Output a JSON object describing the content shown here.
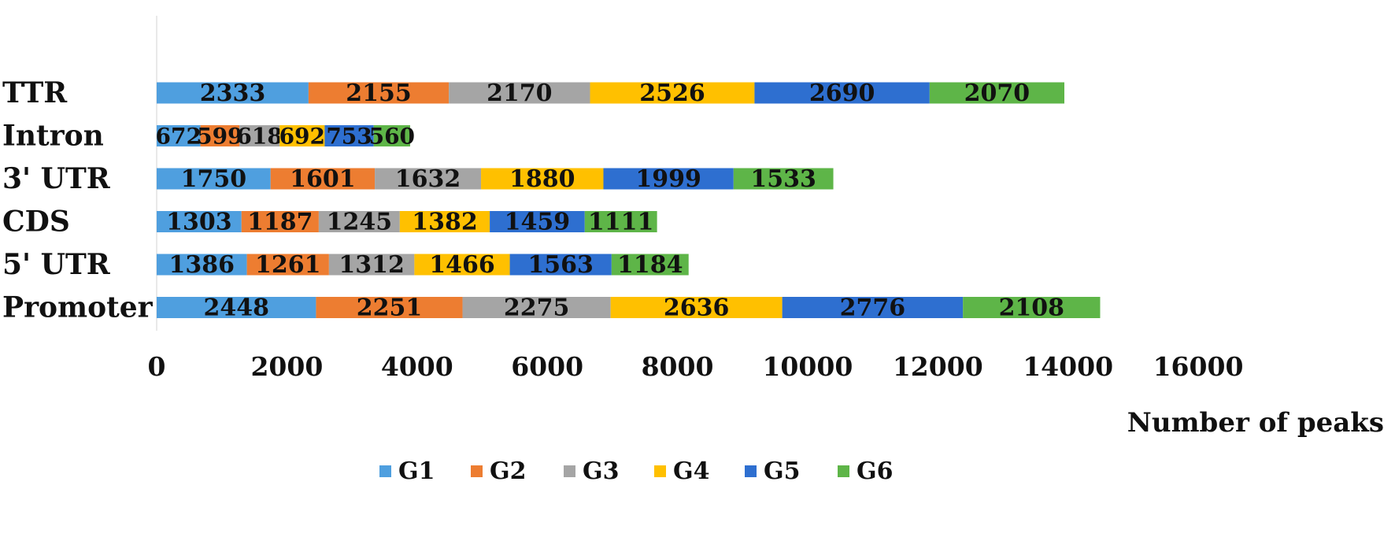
{
  "chart_data": {
    "type": "bar",
    "orientation": "horizontal",
    "stacked": true,
    "categories": [
      "Promoter",
      "5' UTR",
      "CDS",
      "3' UTR",
      "Intron",
      "TTR"
    ],
    "series": [
      {
        "name": "G1",
        "color": "#4f9fdf",
        "values": [
          2448,
          1386,
          1303,
          1750,
          672,
          2333
        ]
      },
      {
        "name": "G2",
        "color": "#ed7d31",
        "values": [
          2251,
          1261,
          1187,
          1601,
          599,
          2155
        ]
      },
      {
        "name": "G3",
        "color": "#a5a5a5",
        "values": [
          2275,
          1312,
          1245,
          1632,
          618,
          2170
        ]
      },
      {
        "name": "G4",
        "color": "#ffc000",
        "values": [
          2636,
          1466,
          1382,
          1880,
          692,
          2526
        ]
      },
      {
        "name": "G5",
        "color": "#2e6fd0",
        "values": [
          2776,
          1563,
          1459,
          1999,
          753,
          2690
        ]
      },
      {
        "name": "G6",
        "color": "#5eb548",
        "values": [
          2108,
          1184,
          1111,
          1533,
          560,
          2070
        ]
      }
    ],
    "xlim": [
      0,
      16000
    ],
    "xticks": [
      0,
      2000,
      4000,
      6000,
      8000,
      10000,
      12000,
      14000,
      16000
    ],
    "xlabel": "Number of peaks",
    "ylabel": "",
    "title": "",
    "grid": false,
    "legend": "bottom"
  }
}
